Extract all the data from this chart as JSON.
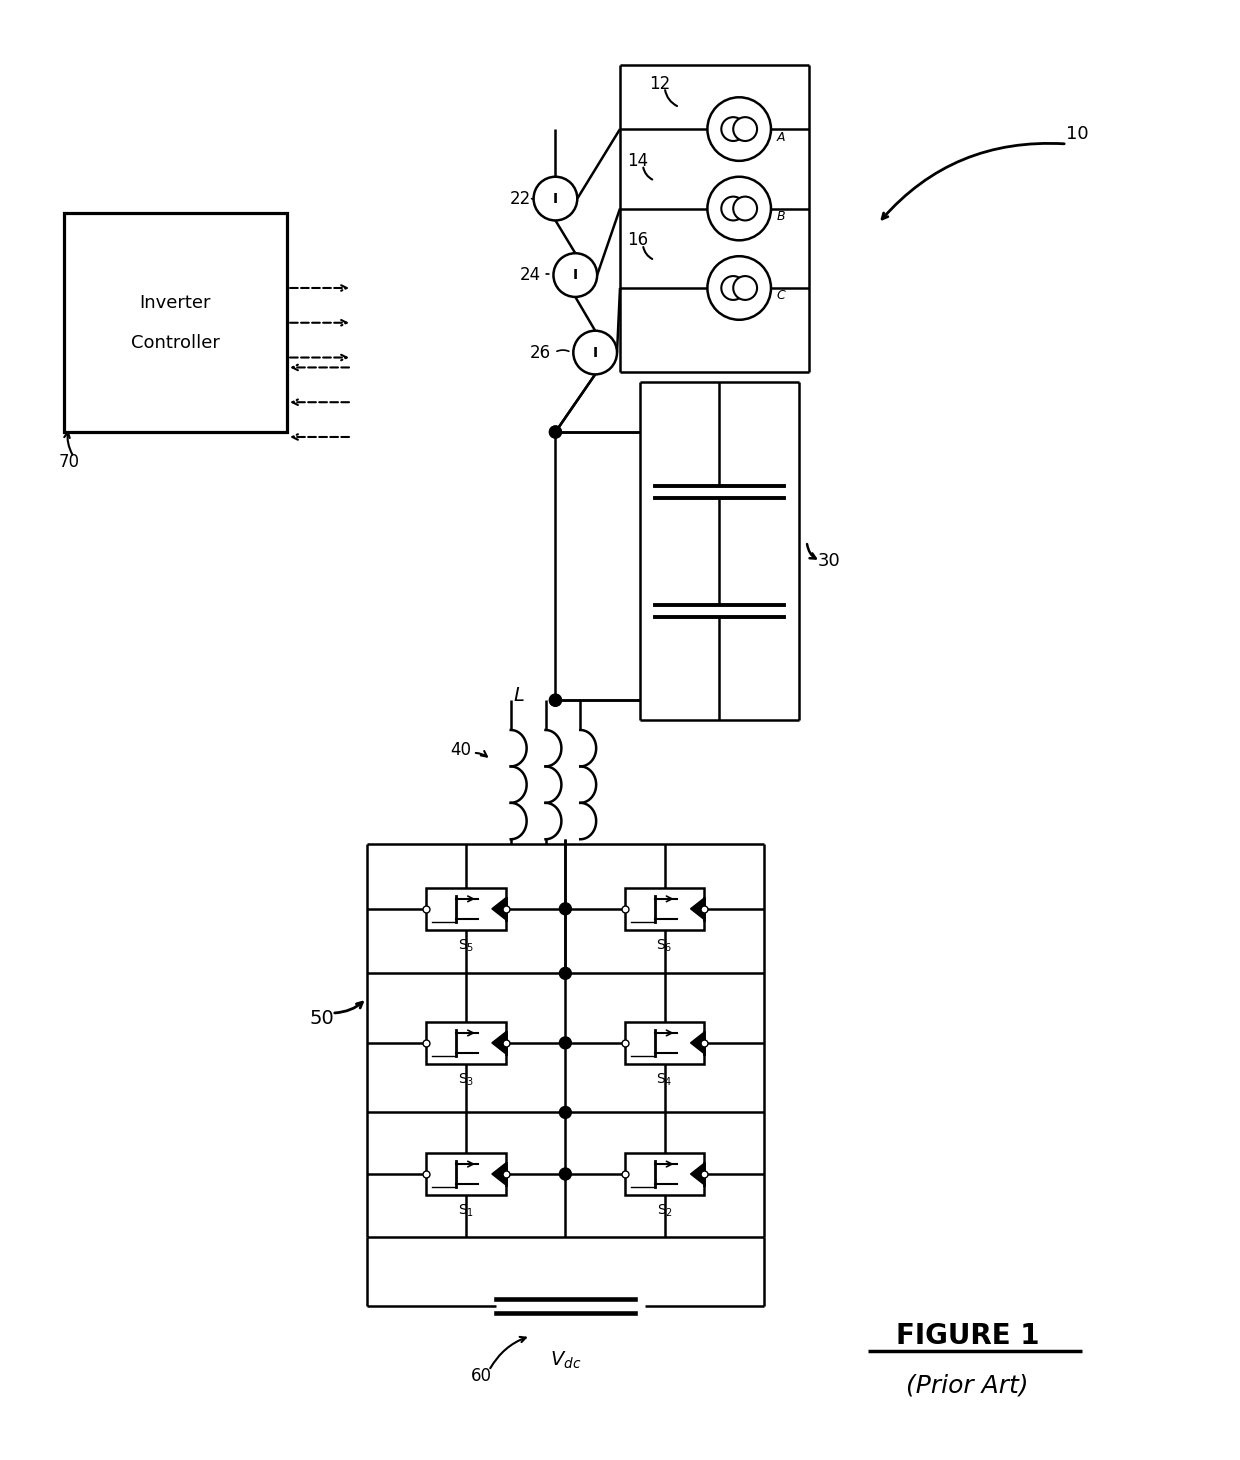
{
  "bg_color": "#ffffff",
  "line_color": "#000000",
  "lw": 1.8,
  "fig_width": 12.4,
  "fig_height": 14.6,
  "label_S1": "S$_1$",
  "label_S2": "S$_2$",
  "label_S3": "S$_3$",
  "label_S4": "S$_4$",
  "label_S5": "S$_5$",
  "label_S6": "S$_6$"
}
